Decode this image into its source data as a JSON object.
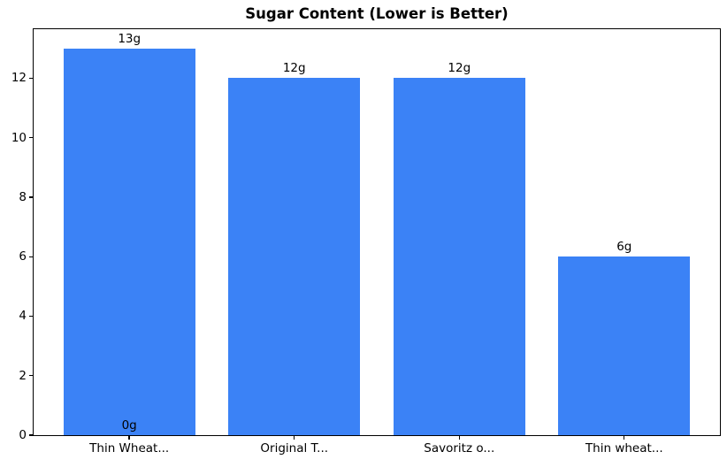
{
  "figure": {
    "background_color": "#ffffff",
    "text_color": "#000000",
    "spine_color": "#000000"
  },
  "chart_data": {
    "type": "bar",
    "title": "Sugar Content (Lower is Better)",
    "categories": [
      "Thin Wheat...",
      "Original T...",
      "Savoritz o...",
      "Thin wheat..."
    ],
    "values": [
      13,
      12,
      12,
      6
    ],
    "bar_labels": [
      "13g",
      "12g",
      "12g",
      "6g"
    ],
    "extra_annotations": [
      {
        "category_index": 0,
        "value": 0,
        "text": "0g"
      }
    ],
    "xlabel": "",
    "ylabel": "",
    "yticks": [
      0,
      2,
      4,
      6,
      8,
      10,
      12
    ],
    "ytick_labels": [
      "0",
      "2",
      "4",
      "6",
      "8",
      "10",
      "12"
    ],
    "ylim": [
      0,
      13.65
    ],
    "xlim": [
      -0.58,
      3.58
    ],
    "bar_width_units": 0.8,
    "bar_color": "#3b82f6",
    "grid": "off",
    "legend": "none"
  }
}
